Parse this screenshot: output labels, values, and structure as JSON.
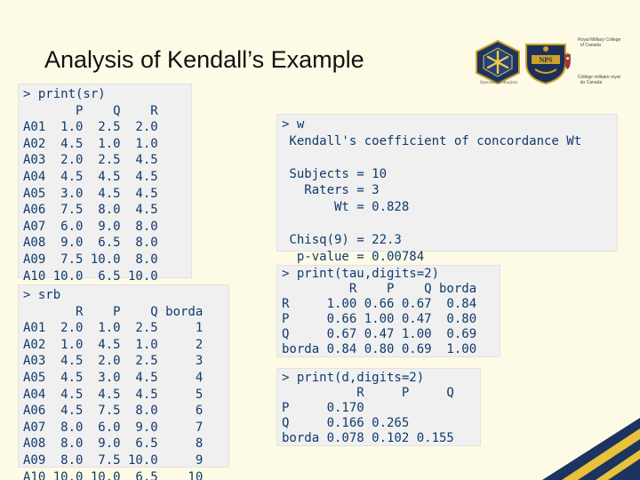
{
  "slide": {
    "title": "Analysis of Kendall’s Example"
  },
  "logos": {
    "left_logo_caption": "Operational Analysis",
    "nps_text": "NPS",
    "rmc_line1": "Royal Military College\n  of Canada",
    "rmc_line2": "Collège militaire royal\n  du Canada"
  },
  "console": {
    "sr_output": "> print(sr)\n       P    Q    R\nA01  1.0  2.5  2.0\nA02  4.5  1.0  1.0\nA03  2.0  2.5  4.5\nA04  4.5  4.5  4.5\nA05  3.0  4.5  4.5\nA06  7.5  8.0  4.5\nA07  6.0  9.0  8.0\nA08  9.0  6.5  8.0\nA09  7.5 10.0  8.0\nA10 10.0  6.5 10.0",
    "srb_output": "> srb\n       R    P    Q borda\nA01  2.0  1.0  2.5     1\nA02  1.0  4.5  1.0     2\nA03  4.5  2.0  2.5     3\nA05  4.5  3.0  4.5     4\nA04  4.5  4.5  4.5     5\nA06  4.5  7.5  8.0     6\nA07  8.0  6.0  9.0     7\nA08  8.0  9.0  6.5     8\nA09  8.0  7.5 10.0     9\nA10 10.0 10.0  6.5    10",
    "w_output": "> w\n Kendall's coefficient of concordance Wt\n\n Subjects = 10\n   Raters = 3\n       Wt = 0.828\n\n Chisq(9) = 22.3\n  p-value = 0.00784",
    "tau_output": "> print(tau,digits=2)\n         R    P    Q borda\nR     1.00 0.66 0.67  0.84\nP     0.66 1.00 0.47  0.80\nQ     0.67 0.47 1.00  0.69\nborda 0.84 0.80 0.69  1.00",
    "d_output": "> print(d,digits=2)\n          R     P     Q\nP     0.170            \nQ     0.166 0.265      \nborda 0.078 0.102 0.155"
  }
}
